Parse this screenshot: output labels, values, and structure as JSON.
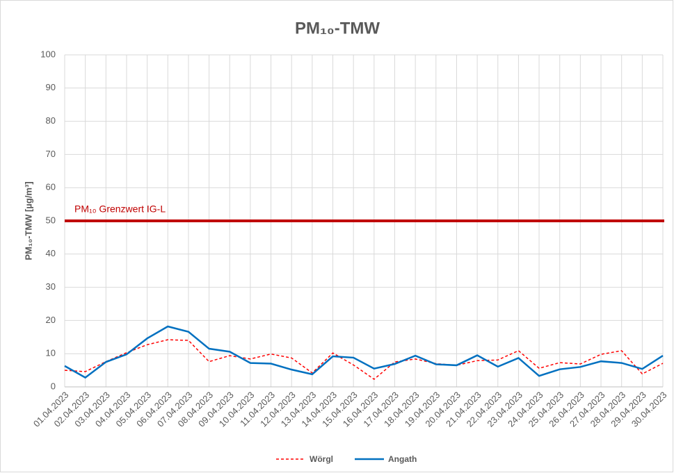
{
  "chart_data": {
    "type": "line",
    "title": "PM₁₀-TMW",
    "y_label": "PM₁₀-TMW [µg/m³]",
    "categories": [
      "01.04.2023",
      "02.04.2023",
      "03.04.2023",
      "04.04.2023",
      "05.04.2023",
      "06.04.2023",
      "07.04.2023",
      "08.04.2023",
      "09.04.2023",
      "10.04.2023",
      "11.04.2023",
      "12.04.2023",
      "13.04.2023",
      "14.04.2023",
      "15.04.2023",
      "16.04.2023",
      "17.04.2023",
      "18.04.2023",
      "19.04.2023",
      "20.04.2023",
      "21.04.2023",
      "22.04.2023",
      "23.04.2023",
      "24.04.2023",
      "25.04.2023",
      "26.04.2023",
      "27.04.2023",
      "28.04.2023",
      "29.04.2023",
      "30.04.2023"
    ],
    "series": [
      {
        "name": "Wörgl",
        "color": "#ff0000",
        "dashed": true,
        "values": [
          5.0,
          4.6,
          7.6,
          10.3,
          12.7,
          14.2,
          14.0,
          7.6,
          9.4,
          8.4,
          9.9,
          8.7,
          4.2,
          10.2,
          6.6,
          2.3,
          7.5,
          8.4,
          7.0,
          6.5,
          7.9,
          8.1,
          10.9,
          5.6,
          7.3,
          6.9,
          9.8,
          10.9,
          3.9,
          7.1
        ]
      },
      {
        "name": "Angath",
        "color": "#0070c0",
        "dashed": false,
        "values": [
          6.3,
          2.8,
          7.5,
          9.8,
          14.6,
          18.2,
          16.6,
          11.5,
          10.6,
          7.2,
          7.0,
          5.2,
          3.8,
          9.2,
          8.8,
          5.5,
          6.9,
          9.4,
          6.8,
          6.5,
          9.5,
          6.1,
          8.7,
          3.3,
          5.3,
          6.0,
          7.7,
          7.2,
          5.4,
          9.4
        ]
      }
    ],
    "threshold": {
      "value": 50,
      "label": "PM₁₀ Grenzwert IG-L",
      "color": "#c00000"
    },
    "ylim": [
      0,
      100
    ],
    "yticks": [
      0,
      10,
      20,
      30,
      40,
      50,
      60,
      70,
      80,
      90,
      100
    ],
    "grid": true,
    "legend": "bottom"
  }
}
